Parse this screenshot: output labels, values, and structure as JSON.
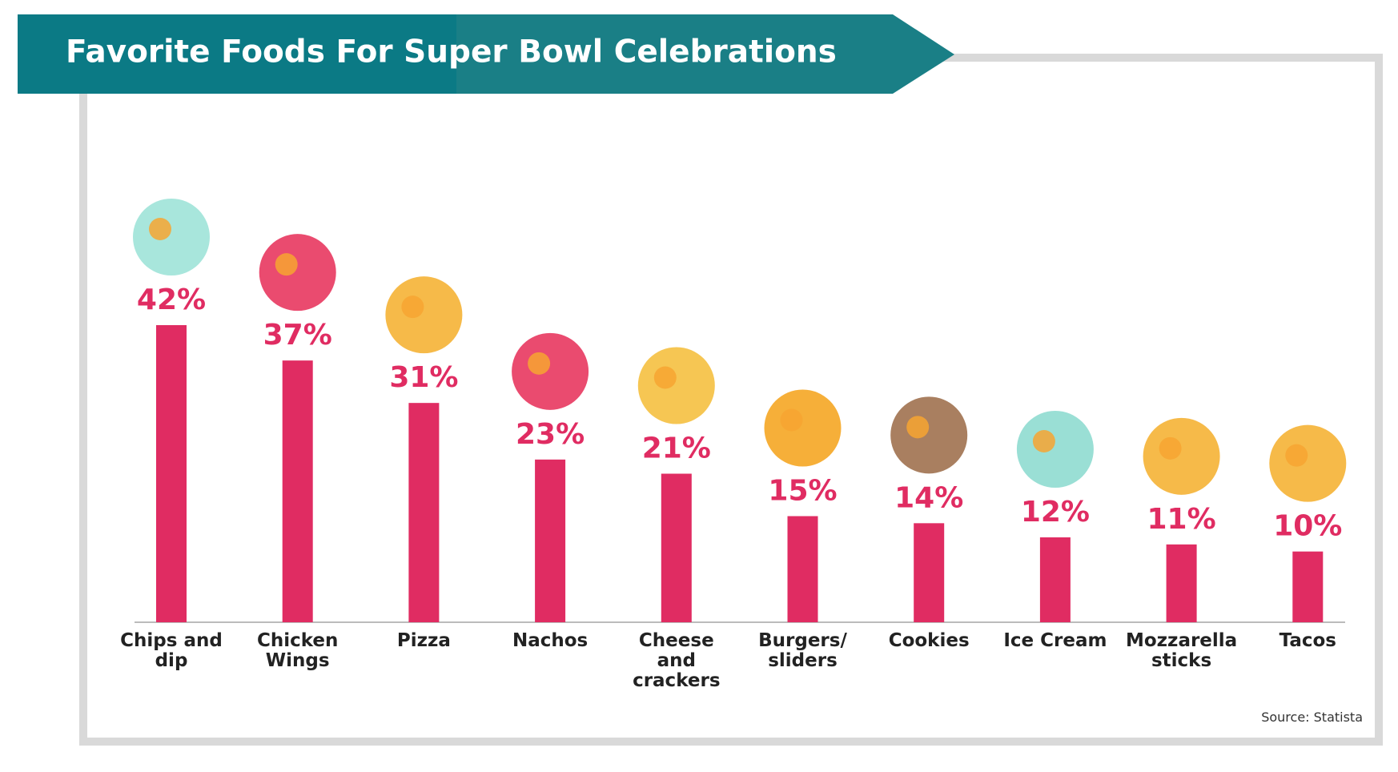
{
  "chart_data": {
    "type": "bar",
    "title": "Favorite Foods For Super Bowl Celebrations",
    "categories": [
      "Chips and dip",
      "Chicken Wings",
      "Pizza",
      "Nachos",
      "Cheese and crackers",
      "Burgers/ sliders",
      "Cookies",
      "Ice Cream",
      "Mozzarella sticks",
      "Tacos"
    ],
    "values": [
      42,
      37,
      31,
      23,
      21,
      15,
      14,
      12,
      11,
      10
    ],
    "value_labels": [
      "42%",
      "37%",
      "31%",
      "23%",
      "21%",
      "15%",
      "14%",
      "12%",
      "11%",
      "10%"
    ],
    "color": "#e02c62",
    "source": "Source: Statista"
  }
}
